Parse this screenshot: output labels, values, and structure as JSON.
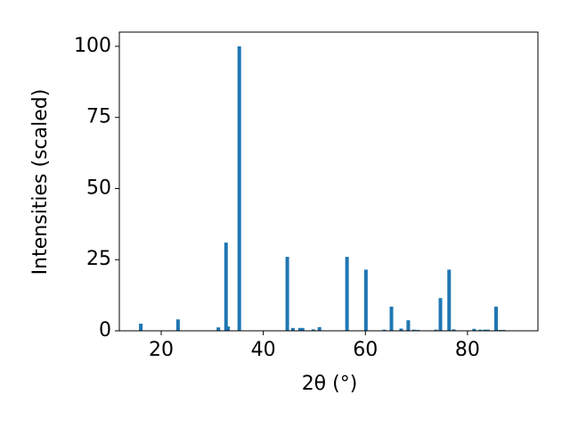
{
  "chart_data": {
    "type": "bar",
    "xlabel": "2θ (°)",
    "ylabel": "Intensities (scaled)",
    "x": [
      16.0,
      23.3,
      31.2,
      32.7,
      33.1,
      35.3,
      44.7,
      45.8,
      47.2,
      47.7,
      49.8,
      51.0,
      56.4,
      60.1,
      63.7,
      65.1,
      67.0,
      68.4,
      69.5,
      70.3,
      73.8,
      74.7,
      76.4,
      77.3,
      81.3,
      82.5,
      83.4,
      84.0,
      85.6,
      86.4,
      87.1
    ],
    "values": [
      2.5,
      4,
      1.2,
      31,
      1.5,
      100,
      26,
      1,
      1,
      1,
      0.5,
      1.3,
      26,
      21.5,
      0.4,
      8.5,
      0.8,
      3.7,
      0.4,
      0.3,
      0.4,
      11.5,
      21.5,
      0.5,
      0.7,
      0.4,
      0.4,
      0.4,
      8.5,
      0.3,
      0.3
    ],
    "color": "#1f77b4",
    "xlim": [
      11.8,
      93.8
    ],
    "xticks": [
      20,
      40,
      60,
      80
    ],
    "ylim": [
      0,
      105
    ],
    "yticks": [
      0,
      25,
      50,
      75,
      100
    ]
  }
}
